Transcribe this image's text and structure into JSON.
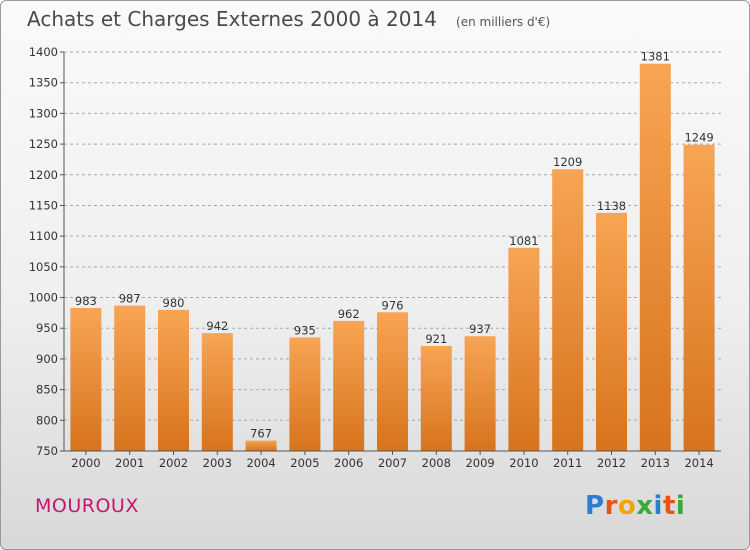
{
  "header": {
    "title": "Achats et Charges Externes 2000 à 2014",
    "subtitle": "(en milliers d'€)"
  },
  "city": "MOUROUX",
  "logo": {
    "text": "Proxiti",
    "letters": [
      {
        "ch": "P",
        "color": "#2a7fd0"
      },
      {
        "ch": "r",
        "color": "#e8521b"
      },
      {
        "ch": "o",
        "color": "#f0a500"
      },
      {
        "ch": "x",
        "color": "#3aa83a"
      },
      {
        "ch": "i",
        "color": "#2a7fd0"
      },
      {
        "ch": "t",
        "color": "#e8521b"
      },
      {
        "ch": "i",
        "color": "#3aa83a"
      }
    ]
  },
  "colors": {
    "bar_top": "#f7a554",
    "bar_bottom": "#d8731c",
    "grid": "#a8a8a8",
    "axis": "#555555"
  },
  "chart_data": {
    "type": "bar",
    "title": "Achats et Charges Externes 2000 à 2014",
    "subtitle": "(en milliers d'€)",
    "categories": [
      "2000",
      "2001",
      "2002",
      "2003",
      "2004",
      "2005",
      "2006",
      "2007",
      "2008",
      "2009",
      "2010",
      "2011",
      "2012",
      "2013",
      "2014"
    ],
    "values": [
      983,
      987,
      980,
      942,
      767,
      935,
      962,
      976,
      921,
      937,
      1081,
      1209,
      1138,
      1381,
      1249
    ],
    "ylim": [
      750,
      1400
    ],
    "yticks": [
      750,
      800,
      850,
      900,
      950,
      1000,
      1050,
      1100,
      1150,
      1200,
      1250,
      1300,
      1350,
      1400
    ],
    "grid": true
  }
}
